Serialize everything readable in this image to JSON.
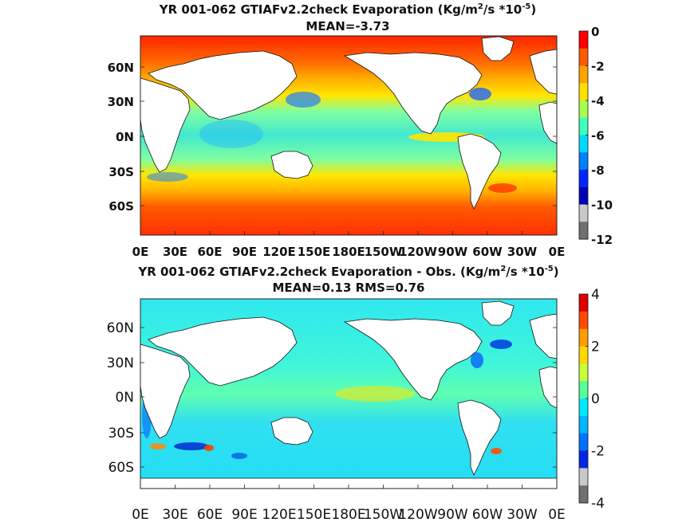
{
  "figure": {
    "background": "#ffffff"
  },
  "chart_data": [
    {
      "type": "heatmap",
      "title": "YR 001-062 GTIAFv2.2check  Evaporation (Kg/m",
      "title_sup1": "2",
      "title_mid": "/s *10",
      "title_sup2": "-5",
      "title_end": ")",
      "subtitle": "MEAN=-3.73",
      "x_ticks": [
        "0E",
        "30E",
        "60E",
        "90E",
        "120E",
        "150E",
        "180E",
        "150W",
        "120W",
        "90W",
        "60W",
        "30W",
        "0E"
      ],
      "y_ticks": [
        "60N",
        "30N",
        "0N",
        "30S",
        "60S"
      ],
      "colorbar": {
        "ticks": [
          "0",
          "-2",
          "-4",
          "-6",
          "-8",
          "-10",
          "-12"
        ],
        "range": [
          -12,
          0
        ],
        "colors": [
          "#ff0000",
          "#ff5a00",
          "#ffa300",
          "#ffe000",
          "#a6ff4d",
          "#3fffbe",
          "#00d9ff",
          "#0080ff",
          "#0026ff",
          "#0000b8",
          "#c8c8c8",
          "#707070"
        ]
      },
      "field": "evaporation",
      "mean": -3.73,
      "units": "Kg/m2/s *10^-5"
    },
    {
      "type": "heatmap",
      "title": "YR 001-062 GTIAFv2.2check Evaporation - Obs. (Kg/m",
      "title_sup1": "2",
      "title_mid": "/s *10",
      "title_sup2": "-5",
      "title_end": ")",
      "subtitle": "MEAN=0.13   RMS=0.76",
      "x_ticks": [
        "0E",
        "30E",
        "60E",
        "90E",
        "120E",
        "150E",
        "180E",
        "150W",
        "120W",
        "90W",
        "60W",
        "30W",
        "0E"
      ],
      "y_ticks": [
        "60N",
        "30N",
        "0N",
        "30S",
        "60S"
      ],
      "colorbar": {
        "ticks": [
          "4",
          "2",
          "0",
          "-2",
          "-4"
        ],
        "range": [
          -4,
          4
        ],
        "colors": [
          "#e00000",
          "#ff4a00",
          "#ff9c00",
          "#ffd800",
          "#c8ff3a",
          "#55ff9a",
          "#00eaff",
          "#00b6ff",
          "#0072ff",
          "#0026e0",
          "#c8c8c8",
          "#707070"
        ]
      },
      "field": "evaporation difference",
      "mean": 0.13,
      "rms": 0.76
    }
  ]
}
